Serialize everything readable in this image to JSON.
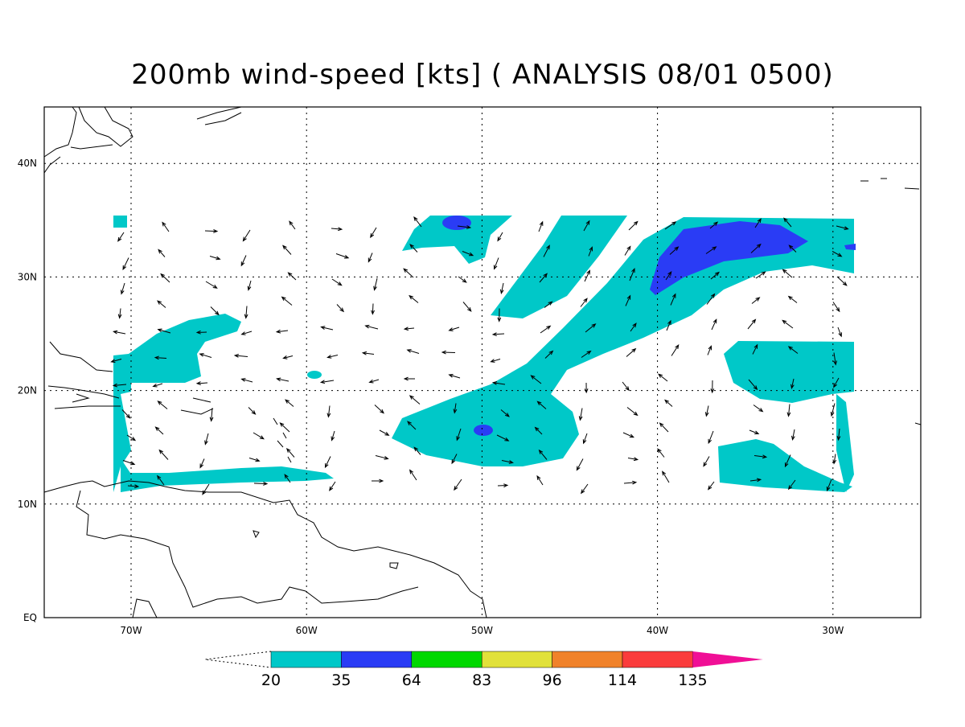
{
  "title": "200mb wind-speed [kts] ( ANALYSIS 08/01 0500)",
  "map": {
    "lon_labels": [
      "70W",
      "60W",
      "50W",
      "40W",
      "30W"
    ],
    "lat_labels": [
      "EQ",
      "10N",
      "20N",
      "30N",
      "40N"
    ]
  },
  "colorbar": {
    "labels": [
      "20",
      "35",
      "64",
      "83",
      "96",
      "114",
      "135"
    ],
    "colors": [
      "#00c8c8",
      "#2a3cf5",
      "#00d800",
      "#e1e13a",
      "#f0822a",
      "#fa3c3c",
      "#f00f96"
    ]
  }
}
